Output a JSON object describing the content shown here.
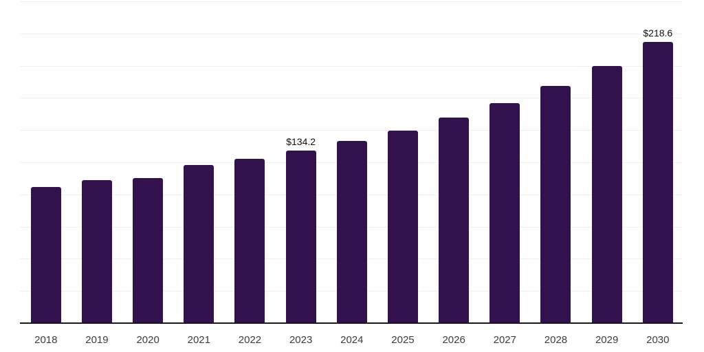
{
  "chart_data": {
    "type": "bar",
    "categories": [
      "2018",
      "2019",
      "2020",
      "2021",
      "2022",
      "2023",
      "2024",
      "2025",
      "2026",
      "2027",
      "2028",
      "2029",
      "2030"
    ],
    "values": [
      105.8,
      111.2,
      112.5,
      123.0,
      127.5,
      134.2,
      141.5,
      149.8,
      159.5,
      171.0,
      184.5,
      200.0,
      218.6
    ],
    "data_labels": [
      {
        "category": "2023",
        "text": "$134.2"
      },
      {
        "category": "2030",
        "text": "$218.6"
      }
    ],
    "title": "",
    "xlabel": "",
    "ylabel": "",
    "ylim": [
      0,
      250
    ],
    "grid": true,
    "grid_step": 25,
    "y_tick_labels_visible": false,
    "legend": "none"
  },
  "colors": {
    "bar": "#33114d",
    "grid": "#f0f0f2",
    "axis": "#1a1a1a",
    "tick_label": "#3d3d3d",
    "data_label": "#111111",
    "background": "#ffffff"
  }
}
